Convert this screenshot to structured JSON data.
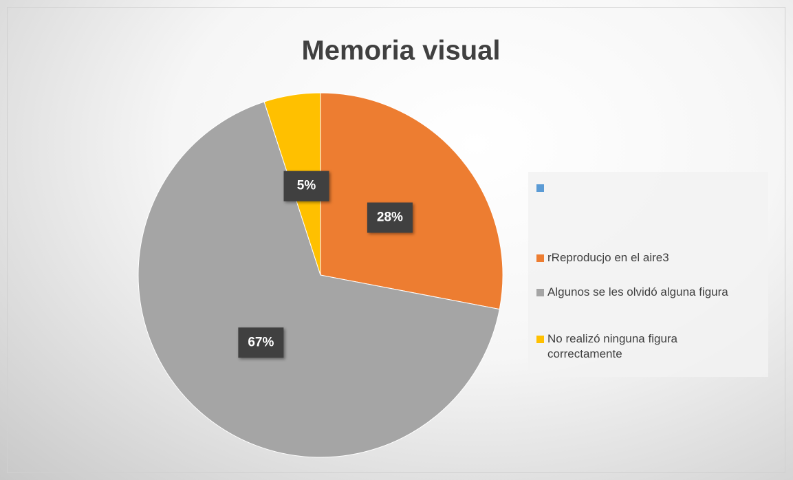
{
  "chart_data": {
    "type": "pie",
    "title": "Memoria visual",
    "categories": [
      null,
      "rReproducjo en el aire3",
      "Algunos se les olvidó alguna figura",
      "No realizó ninguna figura correctamente"
    ],
    "values": [
      0,
      28,
      67,
      5
    ],
    "value_labels": [
      null,
      "28%",
      "67%",
      "5%"
    ],
    "colors": [
      "#5b9bd5",
      "#ed7d31",
      "#a5a5a5",
      "#ffc000"
    ],
    "legend": "right"
  }
}
